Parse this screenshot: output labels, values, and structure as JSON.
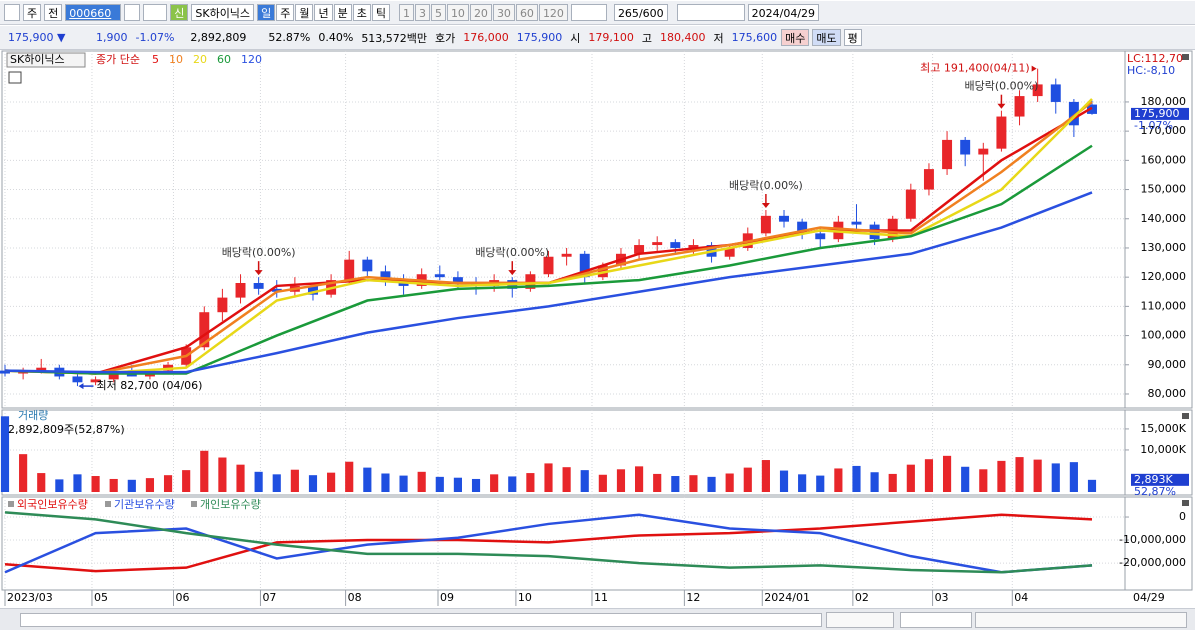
{
  "toolbar": {
    "period": "주",
    "prev": "전",
    "code": "000660",
    "new": "신",
    "name": "SK하이닉스",
    "intervals": [
      "일",
      "주",
      "월",
      "년",
      "분",
      "초",
      "틱"
    ],
    "steps": [
      "1",
      "3",
      "5",
      "10",
      "20",
      "30",
      "60",
      "120"
    ],
    "count": "265",
    "count_total": "/600",
    "date": "2024/04/29"
  },
  "quote": {
    "price": "175,900 ▼",
    "change": "1,900",
    "change_pct": "-1.07%",
    "volume": "2,892,809",
    "volume_ratio": "52.87%",
    "turnover": "0.40%",
    "amount": "513,572백만",
    "bid_ask_label": "호가",
    "ask": "176,000",
    "bid": "175,900",
    "open_label": "시",
    "open": "179,100",
    "high_label": "고",
    "high": "180,400",
    "low_label": "저",
    "low": "175,600",
    "buy": "매수",
    "sell": "매도",
    "eval": "평"
  },
  "chart_data": [
    {
      "type": "candlestick",
      "tab": "SK하이닉스",
      "legend_prefix": "종가 단순",
      "up_color": "#e8262a",
      "down_color": "#1f4fe0",
      "xlim": [
        0,
        60
      ],
      "ylim": [
        75200,
        197100
      ],
      "grid": true,
      "yticks": [
        {
          "value": 80000,
          "label": "80,000"
        },
        {
          "value": 90000,
          "label": "90,000"
        },
        {
          "value": 100000,
          "label": "100,000"
        },
        {
          "value": 110000,
          "label": "110,000"
        },
        {
          "value": 120000,
          "label": "120,000"
        },
        {
          "value": 130000,
          "label": "130,000"
        },
        {
          "value": 140000,
          "label": "140,000"
        },
        {
          "value": 150000,
          "label": "150,000"
        },
        {
          "value": 160000,
          "label": "160,000"
        },
        {
          "value": 170000,
          "label": "170,000"
        },
        {
          "value": 180000,
          "label": "180,000"
        }
      ],
      "candles": [
        [
          88000,
          90000,
          86000,
          87000
        ],
        [
          87000,
          89000,
          85000,
          88000
        ],
        [
          88000,
          92000,
          87000,
          89000
        ],
        [
          89000,
          90000,
          85000,
          86000
        ],
        [
          86000,
          87000,
          82700,
          84000
        ],
        [
          84000,
          86000,
          83000,
          85000
        ],
        [
          85000,
          89000,
          84000,
          87000
        ],
        [
          87000,
          90000,
          86000,
          86000
        ],
        [
          86000,
          88000,
          85000,
          88000
        ],
        [
          88000,
          91000,
          87000,
          90000
        ],
        [
          90000,
          97000,
          89000,
          96000
        ],
        [
          96000,
          110000,
          95000,
          108000
        ],
        [
          108000,
          116000,
          105000,
          113000
        ],
        [
          113000,
          121000,
          111000,
          118000
        ],
        [
          118000,
          120000,
          114000,
          116000
        ],
        [
          116000,
          119000,
          113000,
          115000
        ],
        [
          115000,
          120000,
          113000,
          117000
        ],
        [
          117000,
          118000,
          112000,
          114000
        ],
        [
          114000,
          121000,
          113000,
          119000
        ],
        [
          119000,
          129000,
          118000,
          126000
        ],
        [
          126000,
          127000,
          120000,
          122000
        ],
        [
          122000,
          124000,
          117000,
          119000
        ],
        [
          119000,
          121000,
          114000,
          117000
        ],
        [
          117000,
          123000,
          116000,
          121000
        ],
        [
          121000,
          124000,
          119000,
          120000
        ],
        [
          120000,
          122000,
          116000,
          118000
        ],
        [
          118000,
          120000,
          114000,
          117000
        ],
        [
          117000,
          121000,
          115000,
          119000
        ],
        [
          119000,
          120000,
          113000,
          116000
        ],
        [
          116000,
          122000,
          115000,
          121000
        ],
        [
          121000,
          129000,
          120000,
          127000
        ],
        [
          127000,
          130000,
          124000,
          128000
        ],
        [
          128000,
          129000,
          118000,
          120000
        ],
        [
          120000,
          125000,
          119000,
          124000
        ],
        [
          124000,
          130000,
          123000,
          128000
        ],
        [
          128000,
          133000,
          126000,
          131000
        ],
        [
          131000,
          134000,
          129000,
          132000
        ],
        [
          132000,
          133000,
          128000,
          130000
        ],
        [
          130000,
          133000,
          128000,
          131000
        ],
        [
          131000,
          132000,
          125000,
          127000
        ],
        [
          127000,
          131000,
          126000,
          130000
        ],
        [
          130000,
          137000,
          129000,
          135000
        ],
        [
          135000,
          143000,
          134000,
          141000
        ],
        [
          141000,
          143000,
          137000,
          139000
        ],
        [
          139000,
          140000,
          133000,
          135000
        ],
        [
          135000,
          137000,
          130000,
          133000
        ],
        [
          133000,
          141000,
          132000,
          139000
        ],
        [
          139000,
          145000,
          136000,
          138000
        ],
        [
          138000,
          139000,
          131000,
          133000
        ],
        [
          133000,
          141000,
          132000,
          140000
        ],
        [
          140000,
          152000,
          139000,
          150000
        ],
        [
          150000,
          159000,
          148000,
          157000
        ],
        [
          157000,
          170000,
          155000,
          167000
        ],
        [
          167000,
          168000,
          158000,
          162000
        ],
        [
          162000,
          166000,
          153000,
          164000
        ],
        [
          164000,
          177000,
          163000,
          175000
        ],
        [
          175000,
          184000,
          172000,
          182000
        ],
        [
          182000,
          191400,
          180000,
          186000
        ],
        [
          186000,
          188000,
          176000,
          180000
        ],
        [
          180000,
          181000,
          168000,
          172000
        ],
        [
          179100,
          180400,
          175600,
          175900
        ]
      ],
      "series": [
        {
          "name": "5",
          "color": "#e01010",
          "x": [
            0,
            5,
            10,
            15,
            20,
            25,
            30,
            35,
            40,
            45,
            50,
            55,
            60
          ],
          "values": [
            88000,
            87000,
            96000,
            117000,
            119000,
            118000,
            118000,
            128000,
            131000,
            136000,
            136000,
            160000,
            178000
          ]
        },
        {
          "name": "10",
          "color": "#f08020",
          "x": [
            0,
            5,
            10,
            15,
            20,
            25,
            30,
            35,
            40,
            45,
            50,
            55,
            60
          ],
          "values": [
            88000,
            87000,
            93000,
            115000,
            120000,
            118000,
            118000,
            126000,
            131000,
            137000,
            135000,
            156000,
            180000
          ]
        },
        {
          "name": "20",
          "color": "#e8d818",
          "x": [
            0,
            5,
            10,
            15,
            20,
            25,
            30,
            35,
            40,
            45,
            50,
            55,
            60
          ],
          "values": [
            88000,
            87000,
            89000,
            112000,
            119000,
            117000,
            118000,
            124000,
            130000,
            136000,
            134000,
            150000,
            181000
          ]
        },
        {
          "name": "60",
          "color": "#1a9a3a",
          "x": [
            0,
            5,
            10,
            15,
            20,
            25,
            30,
            35,
            40,
            45,
            50,
            55,
            60
          ],
          "values": [
            88000,
            87000,
            87000,
            100000,
            112000,
            116000,
            117000,
            119000,
            124000,
            130000,
            134000,
            145000,
            165000
          ]
        },
        {
          "name": "120",
          "color": "#2a50e0",
          "x": [
            0,
            5,
            10,
            15,
            20,
            25,
            30,
            35,
            40,
            45,
            50,
            55,
            60
          ],
          "values": [
            88000,
            87500,
            87500,
            94000,
            101000,
            106000,
            110000,
            115000,
            120000,
            124000,
            128000,
            137000,
            149000
          ]
        }
      ],
      "annotations": [
        {
          "text": "배당락(0.00%)",
          "x": 14
        },
        {
          "text": "배당락(0.00%)",
          "x": 28
        },
        {
          "text": "배당락(0.00%)",
          "x": 42
        },
        {
          "text": "배당락(0.00%)",
          "x": 55
        }
      ],
      "high_label": {
        "text": "최고 191,400(04/11)",
        "x": 57
      },
      "low_label": {
        "text": "최저 82,700 (04/06)",
        "x": 4
      },
      "last": {
        "price": "175,900",
        "change": "-1.07%"
      },
      "lc": "LC:112,70",
      "hc": "HC:-8,10"
    },
    {
      "type": "bar",
      "title": "거래량",
      "subtitle": "2,892,809주(52,87%)",
      "xlim": [
        0,
        60
      ],
      "ylim": [
        0,
        19500
      ],
      "yticks": [
        {
          "value": 15000,
          "label": "15,000K"
        },
        {
          "value": 10000,
          "label": "10,000K"
        }
      ],
      "values": [
        18000,
        9000,
        4500,
        3000,
        4200,
        3800,
        3100,
        2900,
        3300,
        4000,
        5200,
        9800,
        8200,
        6500,
        4800,
        4200,
        5300,
        4000,
        4600,
        7200,
        5800,
        4400,
        3900,
        4800,
        3600,
        3400,
        3100,
        4200,
        3700,
        4500,
        6800,
        5900,
        5200,
        4100,
        5400,
        6100,
        4300,
        3800,
        4000,
        3600,
        4400,
        5800,
        7600,
        5100,
        4200,
        3900,
        5600,
        6200,
        4700,
        4300,
        6500,
        7800,
        8600,
        6000,
        5400,
        7400,
        8300,
        7700,
        6800,
        7100,
        2893
      ],
      "last_label": "2,893K",
      "last_ratio": "52,87%"
    },
    {
      "type": "line",
      "xlim": [
        0,
        60
      ],
      "ylim": [
        -31700000,
        8700000
      ],
      "yticks": [
        0,
        {
          "value": -10000000,
          "label": "-10,000,000"
        },
        {
          "value": -20000000,
          "label": "-20,000,000"
        }
      ],
      "x": [
        0,
        5,
        10,
        15,
        20,
        25,
        30,
        35,
        40,
        45,
        50,
        55,
        60
      ],
      "series": [
        {
          "name": "외국인보유수량",
          "color": "#e01010",
          "values": [
            -20500000,
            -23500000,
            -22000000,
            -11000000,
            -10000000,
            -10000000,
            -11000000,
            -8000000,
            -7000000,
            -5000000,
            -2000000,
            1000000,
            -1000000
          ]
        },
        {
          "name": "기관보유수량",
          "color": "#2a50e0",
          "values": [
            -24000000,
            -7000000,
            -5000000,
            -18000000,
            -12000000,
            -9000000,
            -3000000,
            1000000,
            -5000000,
            -7000000,
            -17000000,
            -24000000,
            -21000000
          ]
        },
        {
          "name": "개인보유수량",
          "color": "#2e8b57",
          "values": [
            2000000,
            -1000000,
            -7000000,
            -12000000,
            -16000000,
            -16000000,
            -17000000,
            -20000000,
            -22000000,
            -21000000,
            -23000000,
            -24000000,
            -21000000
          ]
        }
      ],
      "xticks": [
        {
          "value": 0,
          "label": "2023/03"
        },
        {
          "value": 4.8,
          "label": "05"
        },
        {
          "value": 9.3,
          "label": "06"
        },
        {
          "value": 14.1,
          "label": "07"
        },
        {
          "value": 18.8,
          "label": "08"
        },
        {
          "value": 23.9,
          "label": "09"
        },
        {
          "value": 28.2,
          "label": "10"
        },
        {
          "value": 32.4,
          "label": "11"
        },
        {
          "value": 37.5,
          "label": "12"
        },
        {
          "value": 41.8,
          "label": "2024/01"
        },
        {
          "value": 46.8,
          "label": "02"
        },
        {
          "value": 51.2,
          "label": "03"
        },
        {
          "value": 55.6,
          "label": "04"
        }
      ],
      "x_end_label": "04/29"
    }
  ]
}
